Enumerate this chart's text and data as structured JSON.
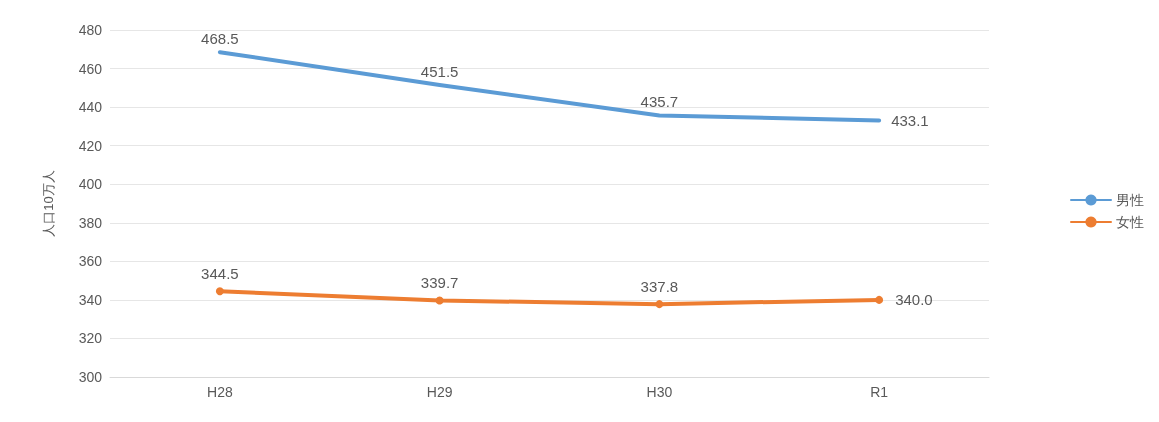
{
  "chart_data": {
    "type": "line",
    "ylabel": "人口10万人",
    "categories": [
      "H28",
      "H29",
      "H30",
      "R1"
    ],
    "series": [
      {
        "name": "男性",
        "color": "#5b9bd5",
        "values": [
          468.5,
          451.5,
          435.7,
          433.1
        ],
        "marker": "none"
      },
      {
        "name": "女性",
        "color": "#ed7d31",
        "values": [
          344.5,
          339.7,
          337.8,
          340.0
        ],
        "marker": "circle"
      }
    ],
    "value_labels": [
      [
        "468.5",
        "451.5",
        "435.7",
        "433.1"
      ],
      [
        "344.5",
        "339.7",
        "337.8",
        "340.0"
      ]
    ],
    "ylim": [
      300,
      480
    ],
    "yticks": [
      300,
      320,
      340,
      360,
      380,
      400,
      420,
      440,
      460,
      480
    ],
    "grid": "y",
    "legend": "right"
  }
}
